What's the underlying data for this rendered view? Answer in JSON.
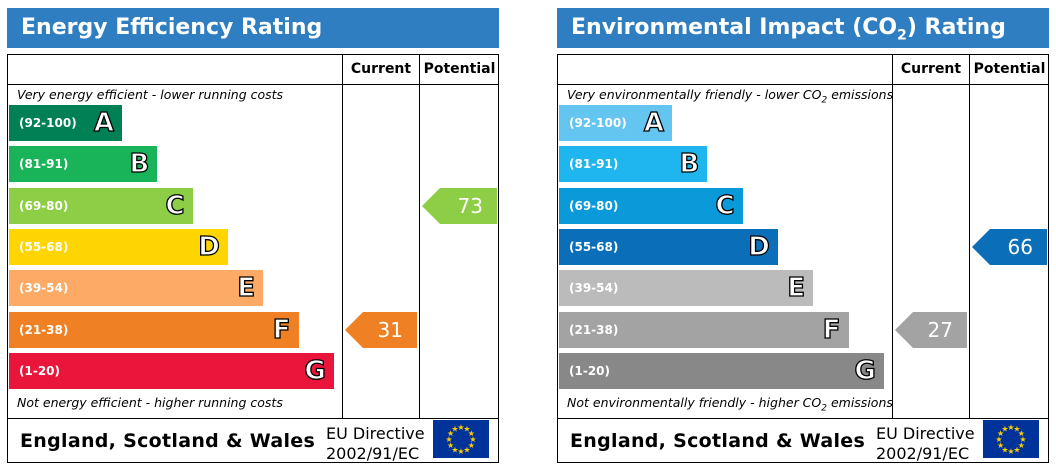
{
  "chart_data": [
    {
      "type": "bar",
      "title": "Energy Efficiency Rating",
      "columns": [
        "Current",
        "Potential"
      ],
      "top_note": "Very energy efficient - lower running costs",
      "bottom_note": "Not energy efficient - higher running costs",
      "bands": [
        {
          "letter": "A",
          "range": "(92-100)",
          "color": "#008054"
        },
        {
          "letter": "B",
          "range": "(81-91)",
          "color": "#19b459"
        },
        {
          "letter": "C",
          "range": "(69-80)",
          "color": "#8dce46"
        },
        {
          "letter": "D",
          "range": "(55-68)",
          "color": "#ffd500"
        },
        {
          "letter": "E",
          "range": "(39-54)",
          "color": "#fcaa65"
        },
        {
          "letter": "F",
          "range": "(21-38)",
          "color": "#ef8023"
        },
        {
          "letter": "G",
          "range": "(1-20)",
          "color": "#e9153b"
        }
      ],
      "current": {
        "value": 31,
        "band": "F",
        "color": "#ef8023"
      },
      "potential": {
        "value": 73,
        "band": "C",
        "color": "#8dce46"
      },
      "footer": {
        "country": "England, Scotland & Wales",
        "directive_line1": "EU Directive",
        "directive_line2": "2002/91/EC"
      }
    },
    {
      "type": "bar",
      "title": "Environmental Impact (CO",
      "title_sub": "2",
      "title_end": ") Rating",
      "columns": [
        "Current",
        "Potential"
      ],
      "top_note": "Very environmentally friendly - lower CO",
      "top_note_sub": "2",
      "top_note_end": " emissions",
      "bottom_note": "Not environmentally friendly - higher CO",
      "bottom_note_sub": "2",
      "bottom_note_end": " emissions",
      "bands": [
        {
          "letter": "A",
          "range": "(92-100)",
          "color": "#63c5f0"
        },
        {
          "letter": "B",
          "range": "(81-91)",
          "color": "#1fb5ee"
        },
        {
          "letter": "C",
          "range": "(69-80)",
          "color": "#0a9ad9"
        },
        {
          "letter": "D",
          "range": "(55-68)",
          "color": "#0a6fb8"
        },
        {
          "letter": "E",
          "range": "(39-54)",
          "color": "#bbbbbb"
        },
        {
          "letter": "F",
          "range": "(21-38)",
          "color": "#a3a3a3"
        },
        {
          "letter": "G",
          "range": "(1-20)",
          "color": "#888888"
        }
      ],
      "current": {
        "value": 27,
        "band": "F",
        "color": "#a3a3a3"
      },
      "potential": {
        "value": 66,
        "band": "D",
        "color": "#0a6fb8"
      },
      "footer": {
        "country": "England, Scotland & Wales",
        "directive_line1": "EU Directive",
        "directive_line2": "2002/91/EC"
      }
    }
  ]
}
